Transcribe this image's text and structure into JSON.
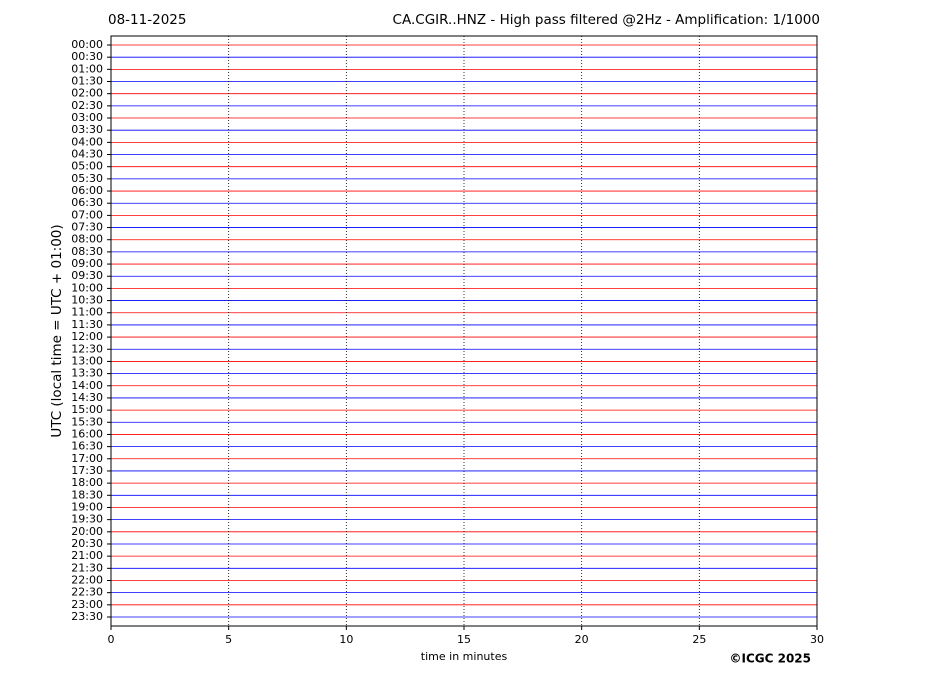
{
  "chart_data": {
    "type": "helicorder",
    "date_label": "08-11-2025",
    "title": "CA.CGIR..HNZ - High pass filtered @2Hz - Amplification: 1/1000",
    "ylabel": "UTC (local time = UTC + 01:00)",
    "xlabel": "time in minutes",
    "copyright": "©ICGC 2025",
    "categories": [
      "00:00",
      "00:30",
      "01:00",
      "01:30",
      "02:00",
      "02:30",
      "03:00",
      "03:30",
      "04:00",
      "04:30",
      "05:00",
      "05:30",
      "06:00",
      "06:30",
      "07:00",
      "07:30",
      "08:00",
      "08:30",
      "09:00",
      "09:30",
      "10:00",
      "10:30",
      "11:00",
      "11:30",
      "12:00",
      "12:30",
      "13:00",
      "13:30",
      "14:00",
      "14:30",
      "15:00",
      "15:30",
      "16:00",
      "16:30",
      "17:00",
      "17:30",
      "18:00",
      "18:30",
      "19:00",
      "19:30",
      "20:00",
      "20:30",
      "21:00",
      "21:30",
      "22:00",
      "22:30",
      "23:00",
      "23:30"
    ],
    "trace_colors": [
      "#ff0000",
      "#0000ff"
    ],
    "xlim": [
      0,
      30
    ],
    "xticks": [
      0,
      5,
      10,
      15,
      20,
      25,
      30
    ],
    "grid": true
  }
}
